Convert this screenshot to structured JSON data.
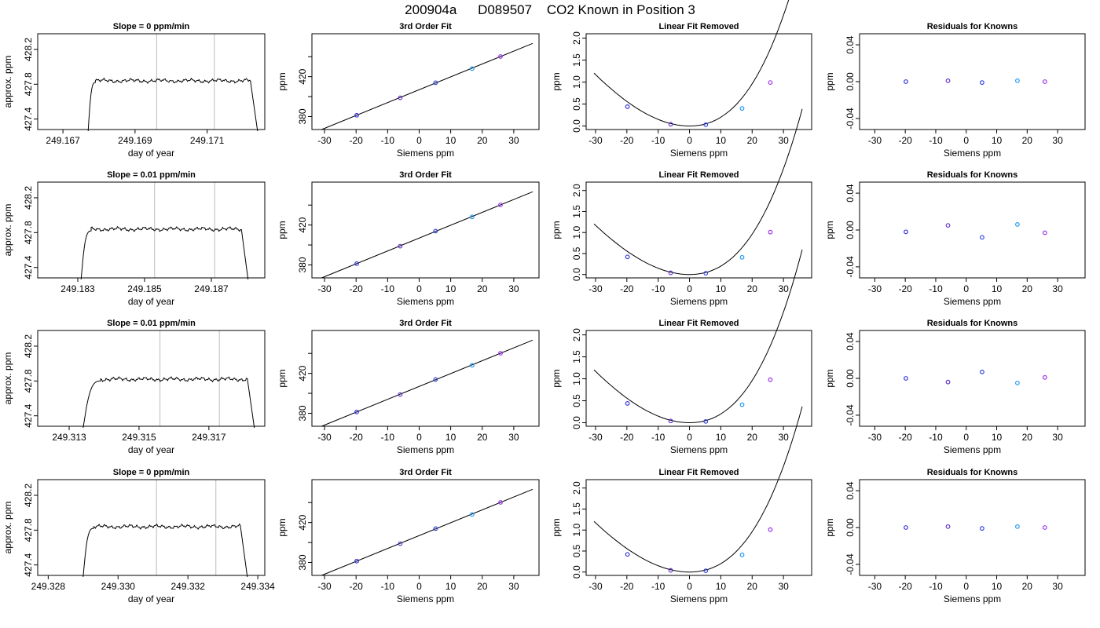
{
  "figure_title": {
    "date_code": "200904a",
    "analyzer": "D089507",
    "description": "CO2 Known in Position  3"
  },
  "common": {
    "fit_title": "3rd Order Fit",
    "lin_title": "Linear Fit Removed",
    "res_title": "Residuals for Knowns",
    "x_label_fit": "Siemens ppm",
    "y_label_fit": "ppm",
    "x_label_trace": "day of year",
    "y_label_trace": "approx. ppm",
    "siemens_ticks": [
      -30,
      -20,
      -10,
      0,
      10,
      20,
      30
    ],
    "fit_y_ticks": [
      380,
      420
    ],
    "lin_y_ticks": [
      0.0,
      0.5,
      1.0,
      1.5,
      2.0
    ],
    "res_y_ticks": [
      -0.04,
      0.0,
      0.04
    ],
    "trace_y_ticks": [
      427.4,
      427.8,
      428.2
    ]
  },
  "chart_data": [
    {
      "type": "line",
      "panel": "trace",
      "row": 0,
      "title": "Slope =  0  ppm/min",
      "xlabel": "day of year",
      "ylabel": "approx. ppm",
      "x_ticks": [
        "249.167",
        "249.169",
        "249.171"
      ],
      "xlim": [
        249.1663,
        249.1726
      ],
      "ylim": [
        427.28,
        428.38
      ],
      "vlines": [
        249.1696,
        249.1712
      ],
      "flat_start": 249.1679,
      "flat_end": 249.1722,
      "rise_start": 249.1677,
      "fall_end": 249.1724,
      "level": 427.84
    },
    {
      "type": "scatter",
      "panel": "fit",
      "row": 0,
      "title": "3rd Order Fit",
      "xlabel": "Siemens ppm",
      "ylabel": "ppm",
      "xlim": [
        -34,
        38
      ],
      "ylim": [
        367,
        463
      ],
      "points": [
        {
          "x": -19.8,
          "y": 381.3
        },
        {
          "x": -6.0,
          "y": 398.8
        },
        {
          "x": 5.2,
          "y": 413.9
        },
        {
          "x": 16.8,
          "y": 428.1
        },
        {
          "x": 25.8,
          "y": 440.2
        }
      ]
    },
    {
      "type": "scatter",
      "panel": "lin",
      "row": 0,
      "title": "Linear Fit Removed",
      "xlabel": "Siemens ppm",
      "ylabel": "ppm",
      "xlim": [
        -33,
        39
      ],
      "ylim": [
        -0.08,
        2.1
      ],
      "points": [
        {
          "x": -19.8,
          "y": 0.44
        },
        {
          "x": -6.0,
          "y": 0.04
        },
        {
          "x": 5.2,
          "y": 0.03
        },
        {
          "x": 16.8,
          "y": 0.4
        },
        {
          "x": 25.8,
          "y": 0.99
        }
      ]
    },
    {
      "type": "scatter",
      "panel": "res",
      "row": 0,
      "title": "Residuals for Knowns",
      "xlabel": "Siemens ppm",
      "ylabel": "ppm",
      "xlim": [
        -35,
        39
      ],
      "ylim": [
        -0.052,
        0.052
      ],
      "points": [
        {
          "x": -19.8,
          "y": 0.0
        },
        {
          "x": -6.0,
          "y": 0.001
        },
        {
          "x": 5.2,
          "y": -0.001
        },
        {
          "x": 16.8,
          "y": 0.001
        },
        {
          "x": 25.8,
          "y": 0.0
        }
      ]
    },
    {
      "type": "line",
      "panel": "trace",
      "row": 1,
      "title": "Slope =  0.01  ppm/min",
      "xlabel": "day of year",
      "ylabel": "approx. ppm",
      "x_ticks": [
        "249.183",
        "249.185",
        "249.187"
      ],
      "xlim": [
        249.1818,
        249.1886
      ],
      "ylim": [
        427.28,
        428.38
      ],
      "vlines": [
        249.1853,
        249.1871
      ],
      "flat_start": 249.1834,
      "flat_end": 249.1879,
      "rise_start": 249.1831,
      "fall_end": 249.1881,
      "level": 427.84
    },
    {
      "type": "scatter",
      "panel": "fit",
      "row": 1,
      "title": "3rd Order Fit",
      "xlabel": "Siemens ppm",
      "ylabel": "ppm",
      "xlim": [
        -34,
        38
      ],
      "ylim": [
        367,
        463
      ],
      "points": [
        {
          "x": -19.8,
          "y": 381.3
        },
        {
          "x": -6.0,
          "y": 398.8
        },
        {
          "x": 5.2,
          "y": 413.9
        },
        {
          "x": 16.8,
          "y": 428.1
        },
        {
          "x": 25.8,
          "y": 440.2
        }
      ]
    },
    {
      "type": "scatter",
      "panel": "lin",
      "row": 1,
      "title": "Linear Fit Removed",
      "xlabel": "Siemens ppm",
      "ylabel": "ppm",
      "xlim": [
        -33,
        39
      ],
      "ylim": [
        -0.08,
        2.2
      ],
      "points": [
        {
          "x": -19.8,
          "y": 0.42
        },
        {
          "x": -6.0,
          "y": 0.04
        },
        {
          "x": 5.2,
          "y": 0.03
        },
        {
          "x": 16.8,
          "y": 0.41
        },
        {
          "x": 25.8,
          "y": 1.01
        }
      ]
    },
    {
      "type": "scatter",
      "panel": "res",
      "row": 1,
      "title": "Residuals for Knowns",
      "xlabel": "Siemens ppm",
      "ylabel": "ppm",
      "xlim": [
        -35,
        39
      ],
      "ylim": [
        -0.052,
        0.052
      ],
      "points": [
        {
          "x": -19.8,
          "y": -0.002
        },
        {
          "x": -6.0,
          "y": 0.005
        },
        {
          "x": 5.2,
          "y": -0.008
        },
        {
          "x": 16.8,
          "y": 0.006
        },
        {
          "x": 25.8,
          "y": -0.003
        }
      ]
    },
    {
      "type": "line",
      "panel": "trace",
      "row": 2,
      "title": "Slope =  0.01  ppm/min",
      "xlabel": "day of year",
      "ylabel": "approx. ppm",
      "x_ticks": [
        "249.313",
        "249.315",
        "249.317"
      ],
      "xlim": [
        249.3121,
        249.3186
      ],
      "ylim": [
        427.28,
        428.38
      ],
      "vlines": [
        249.3156,
        249.3173
      ],
      "flat_start": 249.3139,
      "flat_end": 249.3181,
      "rise_start": 249.3134,
      "fall_end": 249.3183,
      "level": 427.82
    },
    {
      "type": "scatter",
      "panel": "fit",
      "row": 2,
      "title": "3rd Order Fit",
      "xlabel": "Siemens ppm",
      "ylabel": "ppm",
      "xlim": [
        -34,
        38
      ],
      "ylim": [
        367,
        463
      ],
      "points": [
        {
          "x": -19.8,
          "y": 381.3
        },
        {
          "x": -6.0,
          "y": 398.8
        },
        {
          "x": 5.2,
          "y": 413.9
        },
        {
          "x": 16.8,
          "y": 428.1
        },
        {
          "x": 25.8,
          "y": 440.2
        }
      ]
    },
    {
      "type": "scatter",
      "panel": "lin",
      "row": 2,
      "title": "Linear Fit Removed",
      "xlabel": "Siemens ppm",
      "ylabel": "ppm",
      "xlim": [
        -33,
        39
      ],
      "ylim": [
        -0.08,
        2.1
      ],
      "points": [
        {
          "x": -19.8,
          "y": 0.44
        },
        {
          "x": -6.0,
          "y": 0.04
        },
        {
          "x": 5.2,
          "y": 0.03
        },
        {
          "x": 16.8,
          "y": 0.41
        },
        {
          "x": 25.8,
          "y": 0.98
        }
      ]
    },
    {
      "type": "scatter",
      "panel": "res",
      "row": 2,
      "title": "Residuals for Knowns",
      "xlabel": "Siemens ppm",
      "ylabel": "ppm",
      "xlim": [
        -35,
        39
      ],
      "ylim": [
        -0.052,
        0.052
      ],
      "points": [
        {
          "x": -19.8,
          "y": 0.0
        },
        {
          "x": -6.0,
          "y": -0.004
        },
        {
          "x": 5.2,
          "y": 0.007
        },
        {
          "x": 16.8,
          "y": -0.005
        },
        {
          "x": 25.8,
          "y": 0.001
        }
      ]
    },
    {
      "type": "line",
      "panel": "trace",
      "row": 3,
      "title": "Slope =  0  ppm/min",
      "xlabel": "day of year",
      "ylabel": "approx. ppm",
      "x_ticks": [
        "249.328",
        "249.330",
        "249.332",
        "249.334"
      ],
      "xlim": [
        249.3277,
        249.3342
      ],
      "ylim": [
        427.28,
        428.38
      ],
      "vlines": [
        249.3311,
        249.3328
      ],
      "flat_start": 249.3293,
      "flat_end": 249.3335,
      "rise_start": 249.329,
      "fall_end": 249.3337,
      "level": 427.84
    },
    {
      "type": "scatter",
      "panel": "fit",
      "row": 3,
      "title": "3rd Order Fit",
      "xlabel": "Siemens ppm",
      "ylabel": "ppm",
      "xlim": [
        -34,
        38
      ],
      "ylim": [
        367,
        463
      ],
      "points": [
        {
          "x": -19.8,
          "y": 381.3
        },
        {
          "x": -6.0,
          "y": 398.8
        },
        {
          "x": 5.2,
          "y": 413.9
        },
        {
          "x": 16.8,
          "y": 428.1
        },
        {
          "x": 25.8,
          "y": 440.2
        }
      ]
    },
    {
      "type": "scatter",
      "panel": "lin",
      "row": 3,
      "title": "Linear Fit Removed",
      "xlabel": "Siemens ppm",
      "ylabel": "ppm",
      "xlim": [
        -33,
        39
      ],
      "ylim": [
        -0.08,
        2.2
      ],
      "points": [
        {
          "x": -19.8,
          "y": 0.42
        },
        {
          "x": -6.0,
          "y": 0.04
        },
        {
          "x": 5.2,
          "y": 0.03
        },
        {
          "x": 16.8,
          "y": 0.41
        },
        {
          "x": 25.8,
          "y": 1.01
        }
      ]
    },
    {
      "type": "scatter",
      "panel": "res",
      "row": 3,
      "title": "Residuals for Knowns",
      "xlabel": "Siemens ppm",
      "ylabel": "ppm",
      "xlim": [
        -35,
        39
      ],
      "ylim": [
        -0.052,
        0.052
      ],
      "points": [
        {
          "x": -19.8,
          "y": 0.0
        },
        {
          "x": -6.0,
          "y": 0.001
        },
        {
          "x": 5.2,
          "y": -0.001
        },
        {
          "x": 16.8,
          "y": 0.001
        },
        {
          "x": 25.8,
          "y": 0.0
        }
      ]
    }
  ]
}
